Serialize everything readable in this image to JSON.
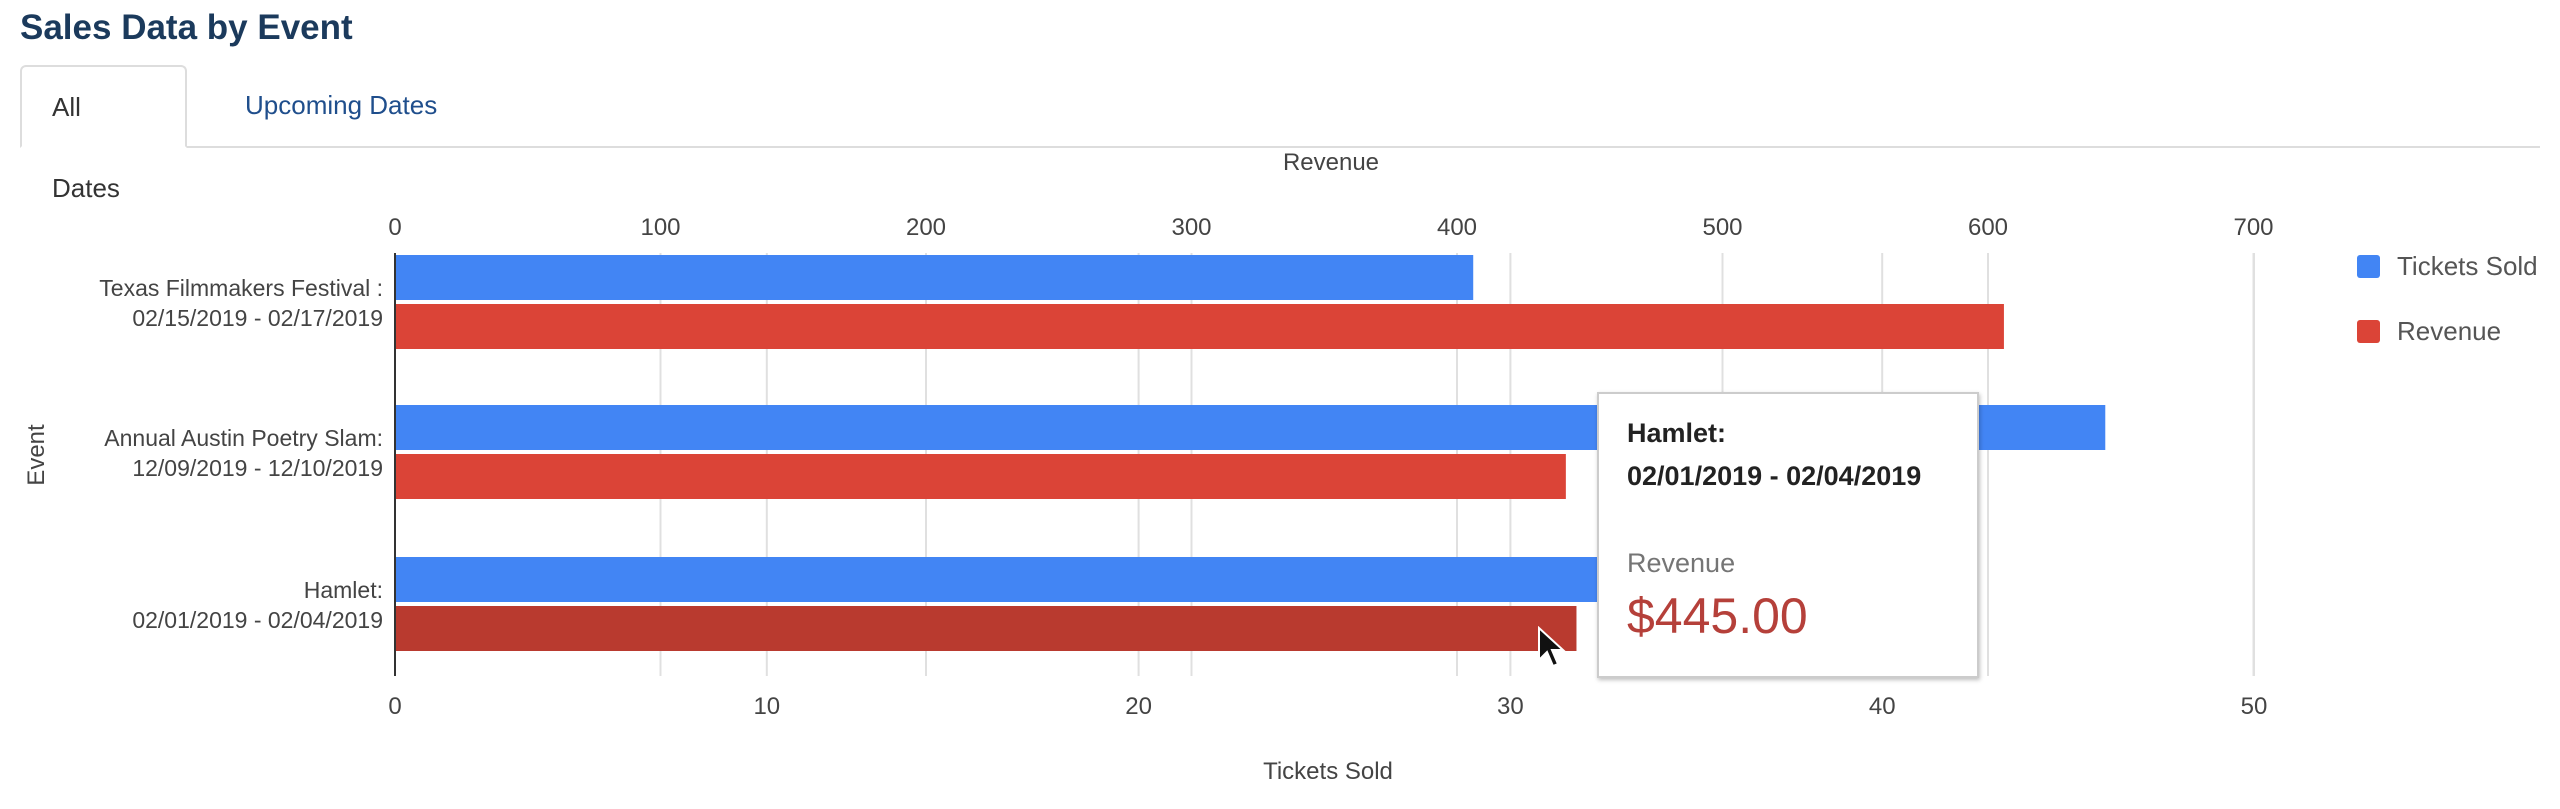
{
  "page": {
    "title": "Sales Data by Event"
  },
  "tabs": [
    {
      "label": "All Dates",
      "active": true
    },
    {
      "label": "Upcoming Dates",
      "active": false
    }
  ],
  "colors": {
    "tickets": "#4285f4",
    "revenue": "#db4437",
    "revenue_highlight": "#b93a2f",
    "grid": "#e0e0e0",
    "axis_text": "#444444"
  },
  "chart_data": {
    "type": "bar",
    "orientation": "horizontal",
    "title": "",
    "categories": [
      [
        "Texas Filmmakers Festival :",
        "02/15/2019 - 02/17/2019"
      ],
      [
        "Annual Austin Poetry Slam:",
        "12/09/2019 - 12/10/2019"
      ],
      [
        "Hamlet:",
        "02/01/2019 - 02/04/2019"
      ]
    ],
    "ylabel": "Event",
    "top_axis": {
      "label": "Revenue",
      "range": [
        0,
        700
      ],
      "ticks": [
        0,
        100,
        200,
        300,
        400,
        500,
        600,
        700
      ]
    },
    "bottom_axis": {
      "label": "Tickets Sold",
      "range": [
        0,
        50
      ],
      "ticks": [
        0,
        10,
        20,
        30,
        40,
        50
      ]
    },
    "series": [
      {
        "name": "Tickets Sold",
        "axis": "bottom",
        "values": [
          29,
          46,
          39
        ]
      },
      {
        "name": "Revenue",
        "axis": "top",
        "values": [
          606,
          441,
          445
        ]
      }
    ],
    "legend_position": "right",
    "grid": true
  },
  "tooltip": {
    "title_line1": "Hamlet:",
    "title_line2": "02/01/2019 - 02/04/2019",
    "label": "Revenue",
    "value": "$445.00"
  }
}
